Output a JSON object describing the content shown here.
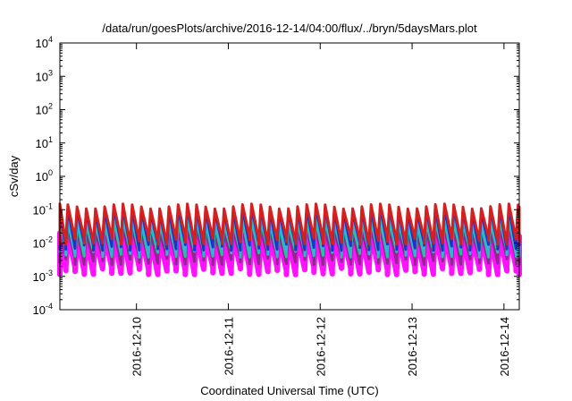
{
  "chart_data": {
    "type": "line",
    "title": "/data/run/goesPlots/archive/2016-12-14/04:00/flux/../bryn/5daysMars.plot",
    "xlabel": "Coordinated Universal Time (UTC)",
    "ylabel": "cSv/day",
    "y_scale": "log",
    "ylim": [
      0.0001,
      10000
    ],
    "y_ticks": [
      {
        "value": 0.0001,
        "base": "10",
        "exp": "-4"
      },
      {
        "value": 0.001,
        "base": "10",
        "exp": "-3"
      },
      {
        "value": 0.01,
        "base": "10",
        "exp": "-2"
      },
      {
        "value": 0.1,
        "base": "10",
        "exp": "-1"
      },
      {
        "value": 1,
        "base": "10",
        "exp": "0"
      },
      {
        "value": 10,
        "base": "10",
        "exp": "1"
      },
      {
        "value": 100,
        "base": "10",
        "exp": "2"
      },
      {
        "value": 1000,
        "base": "10",
        "exp": "3"
      },
      {
        "value": 10000,
        "base": "10",
        "exp": "4"
      }
    ],
    "xlim": [
      "2016-12-09 04:00",
      "2016-12-14 04:00"
    ],
    "x_ticks": [
      "2016-12-10",
      "2016-12-11",
      "2016-12-12",
      "2016-12-13",
      "2016-12-14"
    ],
    "grid": false,
    "legend": "none",
    "pattern": {
      "cycles_per_day": 10,
      "description_peaks": "sawtooth: rapid rise to peak then decay over each ~2.4 h cycle"
    },
    "series": [
      {
        "color": "#d62020",
        "peak": 0.15,
        "trough": 0.012
      },
      {
        "color": "#2030c8",
        "peak": 0.12,
        "trough": 0.008
      },
      {
        "color": "#30b4dc",
        "peak": 0.08,
        "trough": 0.006
      },
      {
        "color": "#20c4a0",
        "peak": 0.05,
        "trough": 0.005
      },
      {
        "color": "#8a2a8a",
        "peak": 0.03,
        "trough": 0.003
      },
      {
        "color": "#ff10ff",
        "peak": 0.02,
        "trough": 0.0015
      }
    ]
  }
}
